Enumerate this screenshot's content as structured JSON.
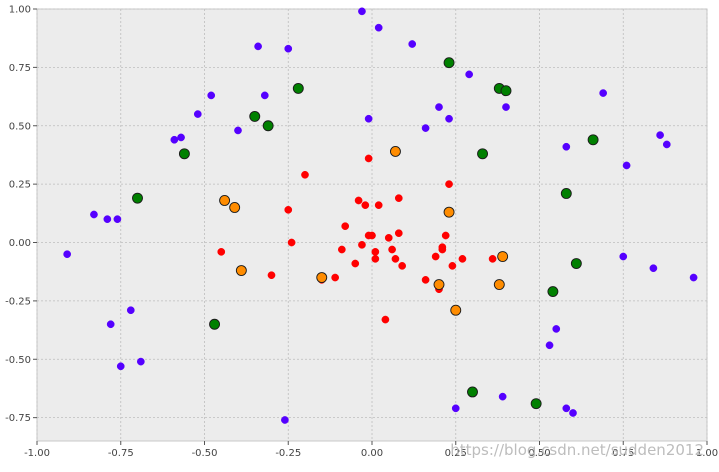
{
  "chart_data": {
    "type": "scatter",
    "title": "",
    "xlabel": "",
    "ylabel": "",
    "xlim": [
      -1.0,
      1.0
    ],
    "ylim": [
      -0.85,
      1.0
    ],
    "x_ticks": [
      -1.0,
      -0.75,
      -0.5,
      -0.25,
      0.0,
      0.25,
      0.5,
      0.75,
      1.0
    ],
    "x_tick_labels": [
      "-1.00",
      "-0.75",
      "-0.50",
      "-0.25",
      "0.00",
      "0.25",
      "0.50",
      "0.75",
      "1.00"
    ],
    "y_ticks": [
      -0.75,
      -0.5,
      -0.25,
      0.0,
      0.25,
      0.5,
      0.75,
      1.0
    ],
    "y_tick_labels": [
      "-0.75",
      "-0.50",
      "-0.25",
      "0.00",
      "0.25",
      "0.50",
      "0.75",
      "1.00"
    ],
    "grid": true,
    "background": "#ececec",
    "series": [
      {
        "color": "#5500ff",
        "marker": "small",
        "points": [
          [
            -0.91,
            -0.05
          ],
          [
            -0.83,
            0.12
          ],
          [
            -0.79,
            0.1
          ],
          [
            -0.76,
            0.1
          ],
          [
            -0.78,
            -0.35
          ],
          [
            -0.72,
            -0.29
          ],
          [
            -0.75,
            -0.53
          ],
          [
            -0.69,
            -0.51
          ],
          [
            -0.59,
            0.44
          ],
          [
            -0.57,
            0.45
          ],
          [
            -0.52,
            0.55
          ],
          [
            -0.48,
            0.63
          ],
          [
            -0.4,
            0.48
          ],
          [
            -0.34,
            0.84
          ],
          [
            -0.32,
            0.63
          ],
          [
            -0.25,
            0.83
          ],
          [
            -0.03,
            0.99
          ],
          [
            0.02,
            0.92
          ],
          [
            -0.01,
            0.53
          ],
          [
            0.12,
            0.85
          ],
          [
            0.16,
            0.49
          ],
          [
            0.2,
            0.58
          ],
          [
            0.23,
            0.53
          ],
          [
            0.29,
            0.72
          ],
          [
            0.4,
            0.58
          ],
          [
            0.58,
            0.41
          ],
          [
            0.69,
            0.64
          ],
          [
            0.76,
            0.33
          ],
          [
            0.86,
            0.46
          ],
          [
            0.88,
            0.42
          ],
          [
            0.75,
            -0.06
          ],
          [
            0.84,
            -0.11
          ],
          [
            0.96,
            -0.15
          ],
          [
            0.55,
            -0.37
          ],
          [
            0.53,
            -0.44
          ],
          [
            0.58,
            -0.71
          ],
          [
            0.6,
            -0.73
          ],
          [
            0.39,
            -0.66
          ],
          [
            0.25,
            -0.71
          ],
          [
            -0.26,
            -0.76
          ]
        ]
      },
      {
        "color": "#ff0000",
        "marker": "small",
        "points": [
          [
            -0.45,
            -0.04
          ],
          [
            -0.3,
            -0.14
          ],
          [
            -0.25,
            0.14
          ],
          [
            -0.24,
            0.0
          ],
          [
            -0.2,
            0.29
          ],
          [
            -0.15,
            -0.16
          ],
          [
            -0.11,
            -0.15
          ],
          [
            -0.09,
            -0.03
          ],
          [
            -0.08,
            0.07
          ],
          [
            -0.05,
            -0.09
          ],
          [
            -0.04,
            0.18
          ],
          [
            -0.03,
            -0.01
          ],
          [
            -0.02,
            0.16
          ],
          [
            -0.01,
            0.36
          ],
          [
            -0.01,
            0.03
          ],
          [
            0.0,
            0.03
          ],
          [
            0.01,
            -0.04
          ],
          [
            0.01,
            -0.07
          ],
          [
            0.02,
            0.16
          ],
          [
            0.04,
            -0.33
          ],
          [
            0.05,
            0.02
          ],
          [
            0.06,
            -0.03
          ],
          [
            0.07,
            -0.07
          ],
          [
            0.08,
            0.04
          ],
          [
            0.08,
            0.19
          ],
          [
            0.09,
            -0.1
          ],
          [
            0.16,
            -0.16
          ],
          [
            0.19,
            -0.06
          ],
          [
            0.2,
            -0.2
          ],
          [
            0.21,
            -0.03
          ],
          [
            0.21,
            -0.02
          ],
          [
            0.22,
            0.03
          ],
          [
            0.23,
            0.25
          ],
          [
            0.24,
            -0.1
          ],
          [
            0.27,
            -0.07
          ],
          [
            0.36,
            -0.07
          ]
        ]
      },
      {
        "color": "#ff8c00",
        "marker": "large",
        "points": [
          [
            -0.44,
            0.18
          ],
          [
            -0.41,
            0.15
          ],
          [
            -0.39,
            -0.12
          ],
          [
            -0.15,
            -0.15
          ],
          [
            0.07,
            0.39
          ],
          [
            0.2,
            -0.18
          ],
          [
            0.23,
            0.13
          ],
          [
            0.25,
            -0.29
          ],
          [
            0.38,
            -0.18
          ],
          [
            0.39,
            -0.06
          ]
        ]
      },
      {
        "color": "#008000",
        "marker": "large",
        "points": [
          [
            -0.7,
            0.19
          ],
          [
            -0.56,
            0.38
          ],
          [
            -0.47,
            -0.35
          ],
          [
            -0.35,
            0.54
          ],
          [
            -0.31,
            0.5
          ],
          [
            -0.22,
            0.66
          ],
          [
            0.23,
            0.77
          ],
          [
            0.33,
            0.38
          ],
          [
            0.38,
            0.66
          ],
          [
            0.4,
            0.65
          ],
          [
            0.58,
            0.21
          ],
          [
            0.66,
            0.44
          ],
          [
            0.61,
            -0.09
          ],
          [
            0.54,
            -0.21
          ],
          [
            0.49,
            -0.69
          ],
          [
            0.3,
            -0.64
          ]
        ]
      }
    ]
  },
  "watermark": "https://blog.csdn.net/sudden2012"
}
